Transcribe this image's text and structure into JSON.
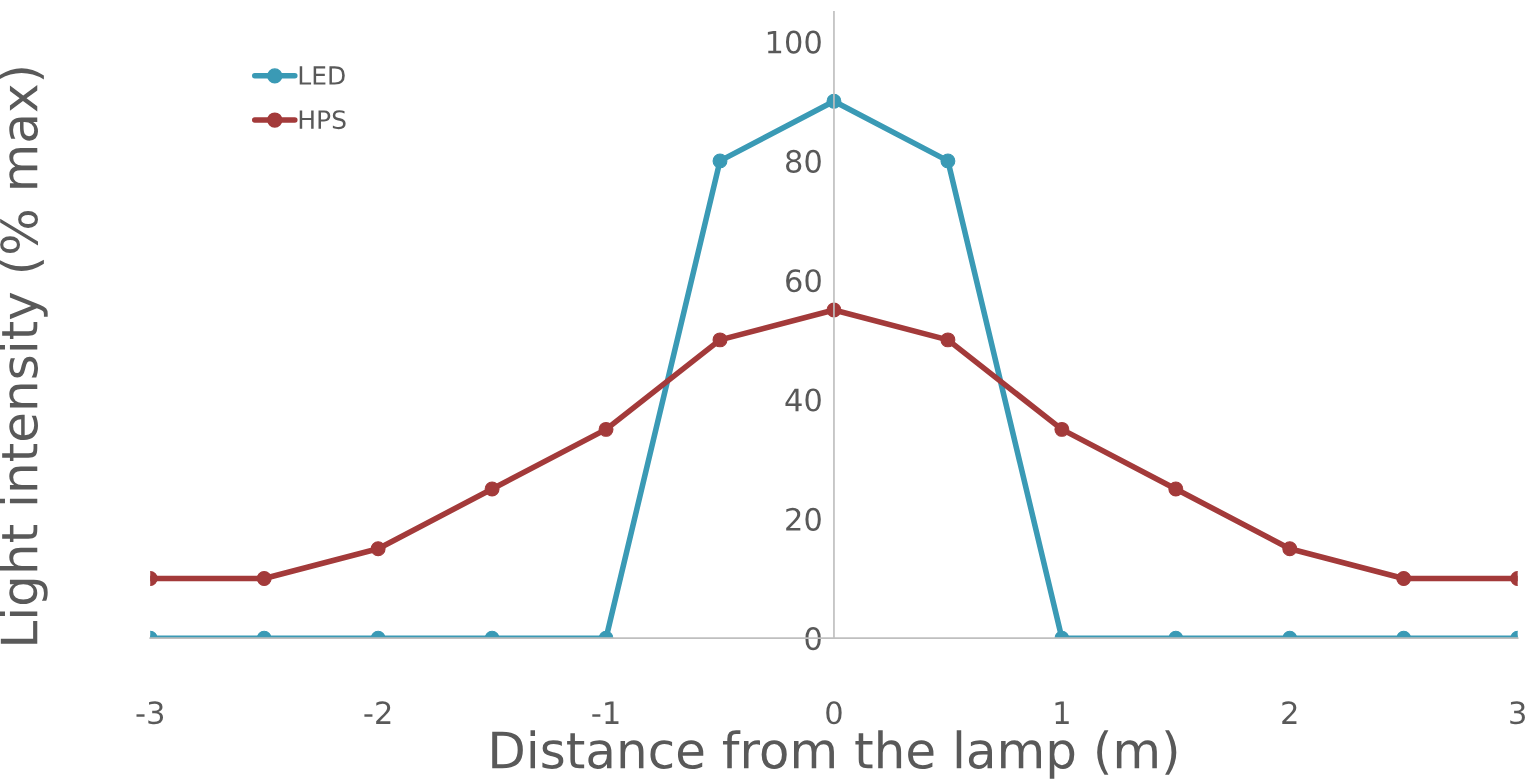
{
  "chart_data": {
    "type": "line",
    "xlabel": "Distance from the lamp (m)",
    "ylabel": "Light intensity (% max)",
    "x": [
      -3,
      -2.5,
      -2,
      -1.5,
      -1,
      -0.5,
      0,
      0.5,
      1,
      1.5,
      2,
      2.5,
      3
    ],
    "series": [
      {
        "name": "LED",
        "color": "#3a9ab5",
        "values": [
          0,
          0,
          0,
          0,
          0,
          80,
          90,
          80,
          0,
          0,
          0,
          0,
          0
        ]
      },
      {
        "name": "HPS",
        "color": "#a33a3a",
        "values": [
          10,
          10,
          15,
          25,
          35,
          50,
          55,
          50,
          35,
          25,
          15,
          10,
          10
        ]
      }
    ],
    "xlim": [
      -3,
      3
    ],
    "xticks": [
      -3,
      -2,
      -1,
      0,
      1,
      2,
      3
    ],
    "ylim": [
      0,
      105
    ],
    "yticks": [
      0,
      20,
      40,
      60,
      80,
      100
    ],
    "marker": "circle",
    "line_style": "solid",
    "grid": false,
    "legend": "top left"
  }
}
